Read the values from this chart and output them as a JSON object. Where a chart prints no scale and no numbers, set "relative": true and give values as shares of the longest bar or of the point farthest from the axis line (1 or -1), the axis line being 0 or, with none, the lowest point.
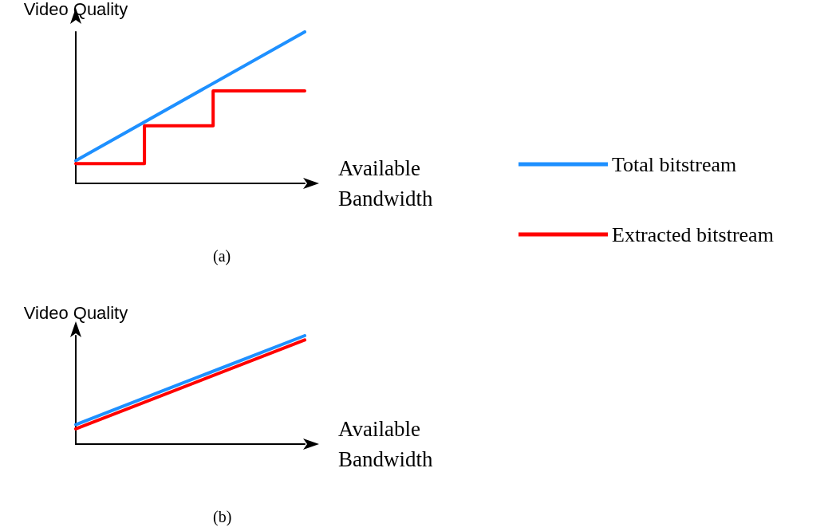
{
  "chart_data": [
    {
      "type": "line",
      "title": "(a)",
      "xlabel": "Available Bandwidth",
      "ylabel": "Video Quality",
      "relative": true,
      "grid": false,
      "legend": "right",
      "marker": "none",
      "line_style": "solid",
      "categories": [
        null,
        null,
        null,
        null,
        null,
        null,
        null,
        null,
        null,
        null,
        null
      ],
      "series": [
        {
          "name": "Total bitstream",
          "color": "#1e90ff",
          "values": [
            0.15,
            null,
            null,
            null,
            null,
            null,
            null,
            null,
            null,
            null,
            1
          ]
        },
        {
          "name": "Extracted bitstream",
          "color": "#ff0000",
          "type": "step",
          "values": [
            0.13,
            0.13,
            0.13,
            0.38,
            0.38,
            0.38,
            0.61,
            0.61,
            0.61,
            0.61,
            0.61
          ]
        }
      ]
    },
    {
      "type": "line",
      "title": "(b)",
      "xlabel": "Available Bandwidth",
      "ylabel": "Video Quality",
      "relative": true,
      "grid": false,
      "legend": false,
      "marker": "none",
      "line_style": "solid",
      "categories": [
        null,
        null,
        null,
        null,
        null,
        null,
        null,
        null,
        null,
        null,
        null
      ],
      "series": [
        {
          "color": "#ff0000",
          "values": [
            0.14,
            null,
            null,
            null,
            null,
            null,
            null,
            null,
            null,
            null,
            0.96
          ]
        },
        {
          "color": "#1e90ff",
          "values": [
            0.18,
            null,
            null,
            null,
            null,
            null,
            null,
            null,
            null,
            null,
            1
          ]
        }
      ]
    }
  ]
}
